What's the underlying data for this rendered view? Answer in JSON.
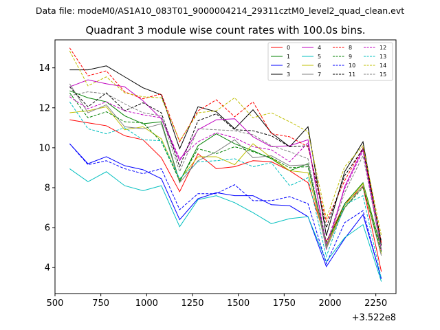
{
  "suptitle": "Data file: modeM0/AS1A10_083T01_9000004214_29311cztM0_level2_quad_clean.evt",
  "chart_data": {
    "type": "line",
    "title": "Quadrant 3 module wise count rates with 100.0s bins.",
    "xlabel": "",
    "ylabel": "",
    "x_offset_label": "+3.522e8",
    "xlim": [
      500,
      2360
    ],
    "ylim": [
      2.7,
      15.4
    ],
    "xticks": [
      500,
      750,
      1000,
      1250,
      1500,
      1750,
      2000,
      2250
    ],
    "yticks": [
      4,
      6,
      8,
      10,
      12,
      14
    ],
    "x": [
      580,
      680,
      780,
      880,
      980,
      1080,
      1180,
      1280,
      1380,
      1480,
      1580,
      1680,
      1780,
      1880,
      1980,
      2080,
      2180,
      2280
    ],
    "legend_position": "top-right",
    "series": [
      {
        "name": "0",
        "color": "#ff0000",
        "dash": "solid",
        "values": [
          11.4,
          11.25,
          11.1,
          10.6,
          10.4,
          9.5,
          7.8,
          9.7,
          8.95,
          9.05,
          9.35,
          9.3,
          8.85,
          8.25,
          5.3,
          7.2,
          8.05,
          3.8
        ]
      },
      {
        "name": "1",
        "color": "#008000",
        "dash": "solid",
        "values": [
          12.85,
          12.5,
          12.3,
          11.6,
          11.2,
          11.3,
          8.3,
          10.1,
          10.7,
          10.2,
          9.85,
          9.45,
          8.85,
          9.2,
          5.1,
          7.2,
          8.25,
          4.95
        ]
      },
      {
        "name": "2",
        "color": "#0000ff",
        "dash": "solid",
        "values": [
          10.2,
          9.2,
          9.55,
          9.1,
          8.9,
          8.45,
          6.4,
          7.45,
          7.75,
          7.6,
          7.6,
          7.15,
          7.1,
          6.55,
          4.05,
          5.45,
          6.65,
          3.45
        ]
      },
      {
        "name": "3",
        "color": "#000000",
        "dash": "solid",
        "values": [
          13.9,
          13.9,
          14.1,
          13.55,
          13.0,
          12.65,
          9.95,
          12.05,
          11.8,
          10.95,
          11.9,
          10.75,
          10.05,
          11.05,
          5.6,
          8.8,
          10.3,
          5.1
        ]
      },
      {
        "name": "4",
        "color": "#bf00bf",
        "dash": "solid",
        "values": [
          13.05,
          13.4,
          13.2,
          13.05,
          12.35,
          11.45,
          9.35,
          10.9,
          11.4,
          11.45,
          10.55,
          10.05,
          10.1,
          10.4,
          4.9,
          8.05,
          9.95,
          4.85
        ]
      },
      {
        "name": "5",
        "color": "#00bfbf",
        "dash": "solid",
        "values": [
          8.95,
          8.3,
          8.8,
          8.1,
          7.85,
          8.1,
          6.05,
          7.4,
          7.6,
          7.25,
          6.75,
          6.2,
          6.45,
          6.55,
          4.3,
          5.5,
          6.15,
          3.3
        ]
      },
      {
        "name": "6",
        "color": "#bfbf00",
        "dash": "solid",
        "values": [
          11.75,
          11.85,
          12.05,
          10.9,
          11.05,
          10.45,
          8.4,
          9.55,
          9.55,
          9.15,
          10.2,
          9.5,
          8.85,
          8.75,
          5.05,
          7.1,
          8.2,
          4.7
        ]
      },
      {
        "name": "7",
        "color": "#808080",
        "dash": "solid",
        "values": [
          13.2,
          11.75,
          12.15,
          11.05,
          10.95,
          11.2,
          8.25,
          9.35,
          9.8,
          10.4,
          9.5,
          9.6,
          9.1,
          9.15,
          4.95,
          7.0,
          8.1,
          4.6
        ]
      },
      {
        "name": "8",
        "color": "#ff0000",
        "dash": "dashed",
        "values": [
          15.0,
          13.6,
          13.85,
          12.8,
          12.45,
          12.7,
          10.3,
          11.85,
          12.4,
          11.55,
          12.3,
          10.7,
          10.55,
          10.05,
          6.3,
          8.35,
          10.0,
          5.25
        ]
      },
      {
        "name": "9",
        "color": "#008000",
        "dash": "dashed",
        "values": [
          12.75,
          11.5,
          11.8,
          11.3,
          11.25,
          10.3,
          8.35,
          9.95,
          9.7,
          10.05,
          9.8,
          9.5,
          9.0,
          9.05,
          5.3,
          7.0,
          8.0,
          4.8
        ]
      },
      {
        "name": "10",
        "color": "#0000ff",
        "dash": "dashed",
        "values": [
          10.2,
          9.15,
          9.35,
          8.95,
          8.7,
          8.95,
          6.9,
          7.7,
          7.7,
          8.15,
          7.35,
          7.35,
          7.55,
          7.2,
          4.2,
          6.25,
          6.85,
          3.4
        ]
      },
      {
        "name": "11",
        "color": "#000000",
        "dash": "dashed",
        "values": [
          13.05,
          12.05,
          12.75,
          11.85,
          12.25,
          11.75,
          9.05,
          11.35,
          11.7,
          10.9,
          10.85,
          10.6,
          10.05,
          10.1,
          6.0,
          8.6,
          9.95,
          5.3
        ]
      },
      {
        "name": "12",
        "color": "#bf00bf",
        "dash": "dashed",
        "values": [
          12.55,
          11.95,
          12.3,
          11.85,
          11.65,
          11.5,
          9.45,
          10.3,
          10.75,
          10.5,
          10.05,
          9.9,
          9.3,
          10.25,
          5.15,
          7.95,
          9.85,
          4.85
        ]
      },
      {
        "name": "13",
        "color": "#00bfbf",
        "dash": "dashed",
        "values": [
          12.3,
          10.95,
          10.7,
          11.0,
          10.4,
          10.35,
          8.45,
          9.3,
          9.35,
          9.45,
          9.05,
          9.25,
          8.1,
          8.5,
          4.55,
          7.15,
          7.6,
          3.45
        ]
      },
      {
        "name": "14",
        "color": "#bfbf00",
        "dash": "dashed",
        "values": [
          14.85,
          13.1,
          13.55,
          12.75,
          12.55,
          12.5,
          10.35,
          11.75,
          11.85,
          12.5,
          11.5,
          11.75,
          11.3,
          10.8,
          6.45,
          9.05,
          10.1,
          5.6
        ]
      },
      {
        "name": "15",
        "color": "#808080",
        "dash": "dashed",
        "values": [
          12.6,
          12.8,
          12.7,
          12.2,
          11.75,
          11.6,
          8.8,
          10.95,
          10.9,
          10.85,
          10.65,
          10.1,
          9.8,
          9.45,
          5.05,
          7.75,
          9.6,
          4.9
        ]
      }
    ]
  }
}
